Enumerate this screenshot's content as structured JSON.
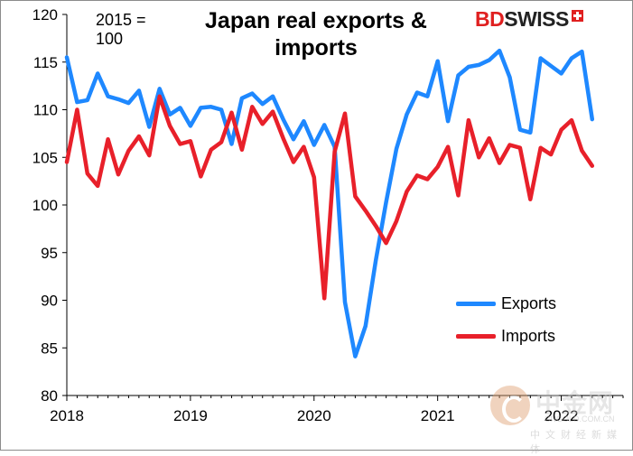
{
  "chart_data": {
    "type": "line",
    "title": "Japan real exports & imports",
    "base_note": "2015 = 100",
    "xlabel": "",
    "ylabel": "",
    "ylim": [
      80,
      120
    ],
    "yticks": [
      80,
      85,
      90,
      95,
      100,
      105,
      110,
      115,
      120
    ],
    "xticks": [
      {
        "label": "2018",
        "value": 2018
      },
      {
        "label": "2019",
        "value": 2019
      },
      {
        "label": "2020",
        "value": 2020
      },
      {
        "label": "2021",
        "value": 2021
      },
      {
        "label": "2022",
        "value": 2022
      }
    ],
    "xlim": [
      2018,
      2022.5
    ],
    "x_start": 2018.0,
    "x_step_months": 1,
    "legend_position": "bottom-right",
    "series": [
      {
        "name": "Exports",
        "color": "#1e88ff",
        "values": [
          115.5,
          110.8,
          111.0,
          113.8,
          111.4,
          111.1,
          110.7,
          112.0,
          108.2,
          112.2,
          109.5,
          110.2,
          108.3,
          110.2,
          110.3,
          110.0,
          106.4,
          111.2,
          111.7,
          110.6,
          111.4,
          109.0,
          106.9,
          108.8,
          106.3,
          108.4,
          106.1,
          89.8,
          84.1,
          87.3,
          94.2,
          100.3,
          105.9,
          109.5,
          111.8,
          111.4,
          115.1,
          108.8,
          113.6,
          114.5,
          114.7,
          115.2,
          116.2,
          113.4,
          107.9,
          107.6,
          115.4,
          114.6,
          113.8,
          115.4,
          116.1,
          109.0
        ]
      },
      {
        "name": "Imports",
        "color": "#e8202a",
        "values": [
          104.5,
          110.0,
          103.3,
          102.0,
          106.9,
          103.2,
          105.7,
          107.2,
          105.2,
          111.4,
          108.3,
          106.4,
          106.7,
          103.0,
          105.8,
          106.6,
          109.7,
          105.8,
          110.3,
          108.5,
          109.8,
          107.0,
          104.5,
          106.1,
          102.9,
          90.2,
          105.6,
          109.6,
          100.9,
          99.4,
          97.8,
          96.0,
          98.3,
          101.4,
          103.1,
          102.7,
          104.0,
          106.1,
          101.0,
          108.9,
          105.0,
          107.0,
          104.4,
          106.3,
          106.0,
          100.6,
          106.0,
          105.3,
          107.9,
          108.9,
          105.7,
          104.1
        ]
      }
    ]
  },
  "branding": {
    "logo_bd": "BD",
    "logo_swiss": "SWISS"
  },
  "watermark": {
    "text_cn": "中金网",
    "url": "CNGOLD.COM.CN",
    "sub": "中文财经新媒体"
  }
}
